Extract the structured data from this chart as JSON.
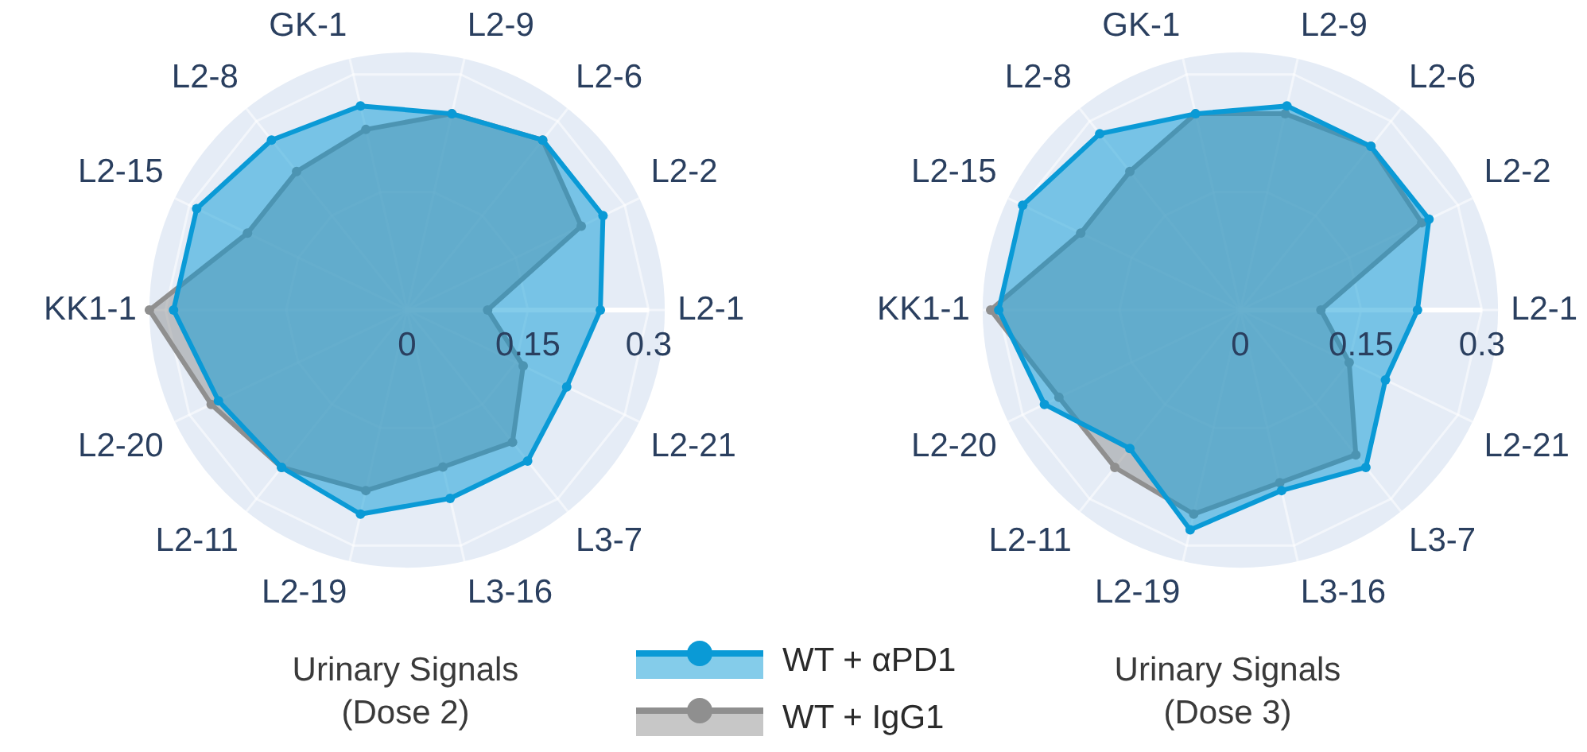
{
  "chart_data": [
    {
      "type": "radar",
      "title": "Urinary Signals\n(Dose 2)",
      "categories": [
        "L2-9",
        "L2-6",
        "L2-2",
        "L2-1",
        "L2-21",
        "L3-7",
        "L3-16",
        "L2-19",
        "L2-11",
        "L2-20",
        "KK1-1",
        "L2-15",
        "L2-8",
        "GK-1"
      ],
      "ylim": [
        0,
        0.32
      ],
      "yticks": [
        0,
        0.15,
        0.3
      ],
      "grid": true,
      "legend": "bottom right",
      "marker": "circle",
      "series": [
        {
          "name": "WT + αPD1",
          "color": "#0a9ad6",
          "values": [
            0.25,
            0.27,
            0.27,
            0.24,
            0.22,
            0.24,
            0.24,
            0.26,
            0.25,
            0.26,
            0.29,
            0.29,
            0.27,
            0.26
          ]
        },
        {
          "name": "WT + IgG1",
          "color": "#8f8f8f",
          "values": [
            0.25,
            0.27,
            0.24,
            0.1,
            0.16,
            0.21,
            0.2,
            0.23,
            0.25,
            0.27,
            0.32,
            0.22,
            0.22,
            0.23
          ]
        }
      ]
    },
    {
      "type": "radar",
      "title": "Urinary Signals\n(Dose 3)",
      "categories": [
        "L2-9",
        "L2-6",
        "L2-2",
        "L2-1",
        "L2-21",
        "L3-7",
        "L3-16",
        "L2-19",
        "L2-11",
        "L2-20",
        "KK1-1",
        "L2-15",
        "L2-8",
        "GK-1"
      ],
      "ylim": [
        0,
        0.32
      ],
      "yticks": [
        0,
        0.15,
        0.3
      ],
      "grid": true,
      "marker": "circle",
      "series": [
        {
          "color": "#0a9ad6",
          "values": [
            0.26,
            0.26,
            0.26,
            0.22,
            0.2,
            0.25,
            0.23,
            0.28,
            0.22,
            0.27,
            0.3,
            0.3,
            0.28,
            0.25
          ]
        },
        {
          "color": "#8f8f8f",
          "values": [
            0.25,
            0.26,
            0.25,
            0.1,
            0.15,
            0.23,
            0.22,
            0.26,
            0.25,
            0.25,
            0.31,
            0.22,
            0.22,
            0.25
          ]
        }
      ]
    }
  ]
}
